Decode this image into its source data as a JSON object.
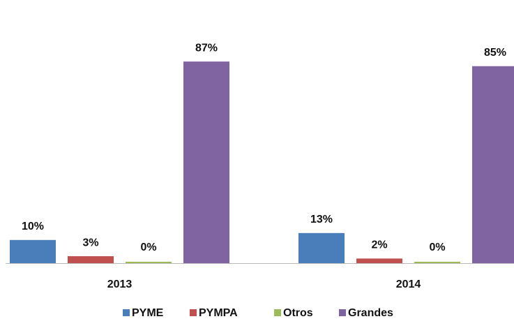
{
  "chart_data": {
    "type": "bar",
    "categories": [
      "2013",
      "2014"
    ],
    "series": [
      {
        "name": "PYME",
        "color": "#4a7ebb",
        "values": [
          10,
          13
        ],
        "value_labels": [
          "10%",
          "13%"
        ]
      },
      {
        "name": "PYMPA",
        "color": "#c0504d",
        "values": [
          3,
          2
        ],
        "value_labels": [
          "3%",
          "2%"
        ]
      },
      {
        "name": "Otros",
        "color": "#9bbb59",
        "values": [
          0,
          0
        ],
        "value_labels": [
          "0%",
          "0%"
        ]
      },
      {
        "name": "Grandes",
        "color": "#8064a2",
        "values": [
          87,
          85
        ],
        "value_labels": [
          "87%",
          "85%"
        ]
      }
    ],
    "legend": "bottom"
  }
}
